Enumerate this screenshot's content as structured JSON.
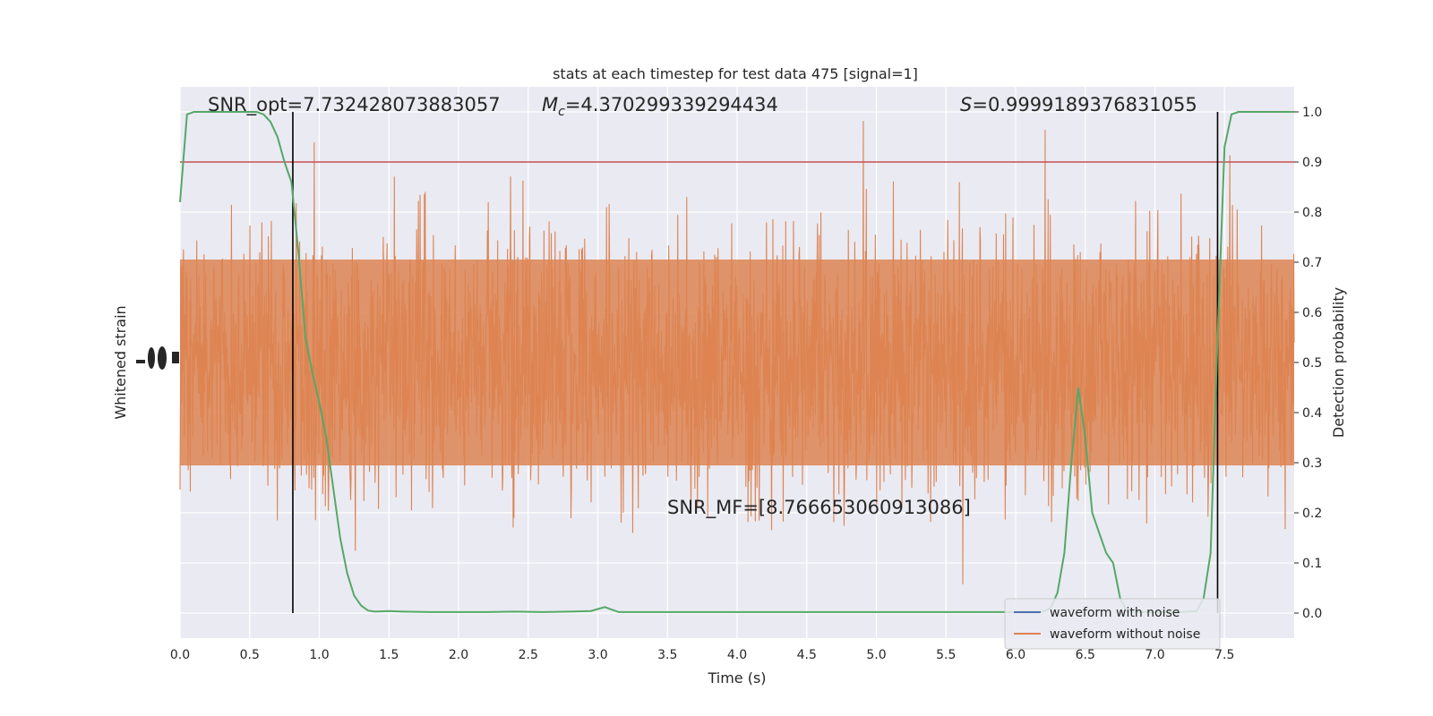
{
  "chart_data": {
    "type": "line",
    "title": "stats at each timestep for test data 475 [signal=1]",
    "xlabel": "Time (s)",
    "ylabel_left": "Whitened strain",
    "ylabel_right": "Detection probability",
    "xlim": [
      0,
      8
    ],
    "ylim_right": [
      -0.05,
      1.05
    ],
    "x_ticks": [
      "0.0",
      "0.5",
      "1.0",
      "1.5",
      "2.0",
      "2.5",
      "3.0",
      "3.5",
      "4.0",
      "4.5",
      "5.0",
      "5.5",
      "6.0",
      "6.5",
      "7.0",
      "7.5"
    ],
    "y_right_ticks": [
      "0.0",
      "0.1",
      "0.2",
      "0.3",
      "0.4",
      "0.5",
      "0.6",
      "0.7",
      "0.8",
      "0.9",
      "1.0"
    ],
    "grid": true,
    "background": "#eaeaf2",
    "annotations": {
      "snr_opt": "SNR_opt=7.732428073883057",
      "mc_symbol": "M",
      "mc_sub": "c",
      "mc_value": "=4.370299339294434",
      "s_symbol": "S",
      "s_value": "=0.9999189376831055",
      "snr_mf": "SNR_MF=[8.766653060913086]"
    },
    "threshold": {
      "value": 0.9,
      "color": "#c44e52"
    },
    "vlines": [
      0.81,
      7.45
    ],
    "series": [
      {
        "name": "waveform with noise",
        "color": "#4c72b0",
        "kind": "strain-noise-band"
      },
      {
        "name": "waveform without noise",
        "color": "#dd8452",
        "kind": "strain-noise-band"
      },
      {
        "color": "#55a868",
        "kind": "probability",
        "x": [
          0.0,
          0.05,
          0.1,
          0.2,
          0.3,
          0.4,
          0.5,
          0.55,
          0.6,
          0.65,
          0.7,
          0.75,
          0.8,
          0.85,
          0.9,
          0.95,
          1.0,
          1.05,
          1.1,
          1.15,
          1.2,
          1.25,
          1.3,
          1.35,
          1.4,
          1.5,
          1.6,
          1.8,
          2.0,
          2.2,
          2.4,
          2.6,
          2.8,
          2.95,
          3.05,
          3.15,
          3.3,
          3.5,
          3.7,
          3.9,
          4.1,
          4.3,
          4.5,
          4.7,
          4.9,
          5.1,
          5.3,
          5.5,
          5.7,
          5.9,
          6.0,
          6.1,
          6.2,
          6.25,
          6.3,
          6.35,
          6.4,
          6.45,
          6.5,
          6.55,
          6.6,
          6.65,
          6.7,
          6.75,
          6.8,
          6.9,
          7.0,
          7.1,
          7.2,
          7.3,
          7.35,
          7.4,
          7.45,
          7.5,
          7.55,
          7.6,
          7.7,
          7.8,
          7.9,
          8.0
        ],
        "y": [
          0.82,
          0.995,
          1.0,
          1.0,
          1.0,
          1.0,
          1.0,
          1.0,
          0.995,
          0.98,
          0.95,
          0.9,
          0.86,
          0.72,
          0.55,
          0.48,
          0.42,
          0.35,
          0.25,
          0.15,
          0.08,
          0.035,
          0.015,
          0.005,
          0.003,
          0.004,
          0.003,
          0.002,
          0.002,
          0.002,
          0.003,
          0.002,
          0.003,
          0.004,
          0.012,
          0.002,
          0.002,
          0.002,
          0.002,
          0.002,
          0.002,
          0.002,
          0.002,
          0.002,
          0.002,
          0.002,
          0.002,
          0.002,
          0.002,
          0.002,
          0.002,
          0.003,
          0.003,
          0.01,
          0.04,
          0.12,
          0.3,
          0.45,
          0.35,
          0.2,
          0.16,
          0.12,
          0.1,
          0.03,
          0.003,
          0.002,
          0.002,
          0.002,
          0.002,
          0.004,
          0.03,
          0.12,
          0.55,
          0.93,
          0.995,
          1.0,
          1.0,
          1.0,
          1.0,
          1.0
        ]
      }
    ],
    "legend": {
      "placement": "lower-right"
    }
  }
}
